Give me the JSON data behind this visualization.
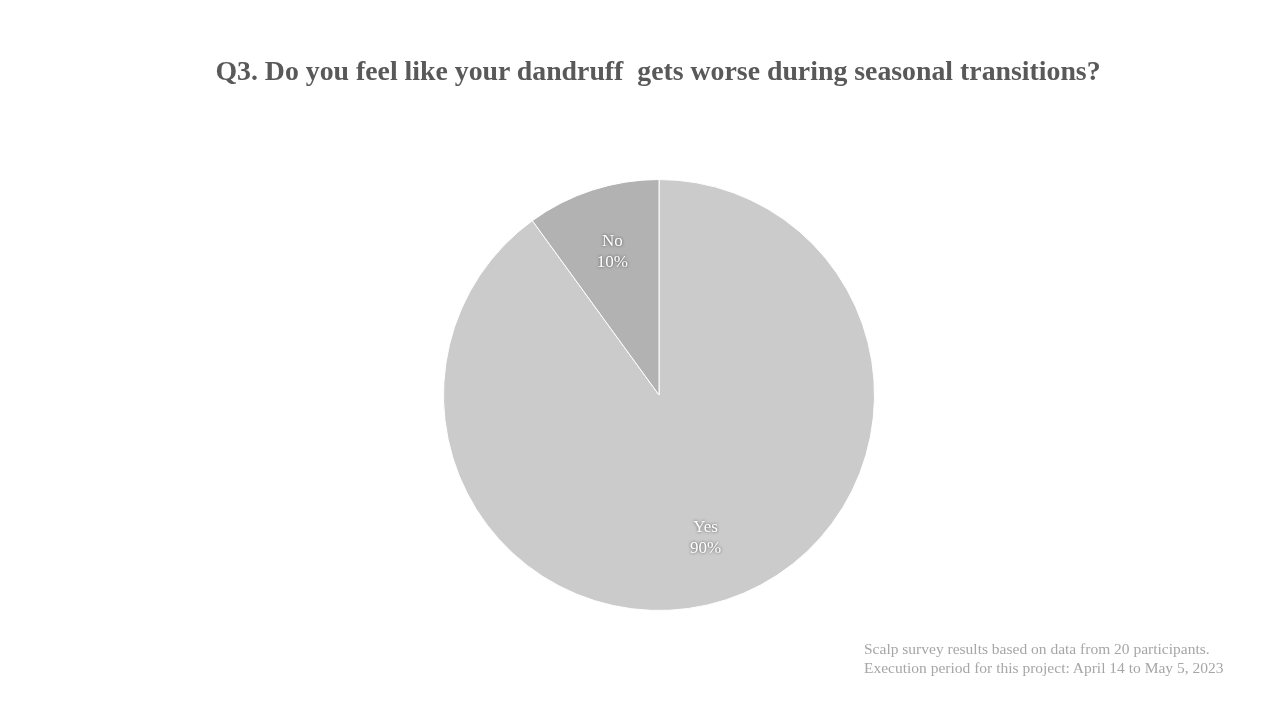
{
  "chart_data": {
    "type": "pie",
    "title": "Q3. Do you feel like your dandruff  gets worse during seasonal transitions?",
    "categories": [
      "Yes",
      "No"
    ],
    "values": [
      90,
      10
    ],
    "colors": [
      "#cbcbcb",
      "#b2b2b2"
    ],
    "value_labels": [
      "90%",
      "10%"
    ],
    "annotations": [
      "Scalp survey results based on data from 20 participants.",
      "Execution period for this project: April 14 to May 5, 2023"
    ]
  }
}
